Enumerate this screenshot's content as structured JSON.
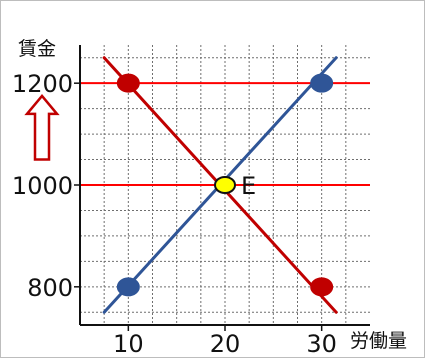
{
  "chart_data": {
    "type": "line",
    "ylabel": "賃金",
    "xlabel": "労働量",
    "x_ticks": [
      "10",
      "20",
      "30"
    ],
    "y_ticks": [
      "800",
      "1000",
      "1200"
    ],
    "xlim": [
      5,
      35
    ],
    "ylim": [
      725,
      1275
    ],
    "grid": true,
    "series": [
      {
        "x": [
          7.5,
          31.5
        ],
        "y": [
          1250,
          750
        ],
        "color": "#c00000"
      },
      {
        "x": [
          7.5,
          31.5
        ],
        "y": [
          750,
          1250
        ],
        "color": "#2f5597"
      }
    ],
    "points": [
      {
        "x": 10,
        "y": 1200,
        "color": "#c00000"
      },
      {
        "x": 30,
        "y": 1200,
        "color": "#2f5597"
      },
      {
        "x": 20,
        "y": 1000,
        "color": "#ffff00",
        "stroke": "#111111",
        "label": "E"
      },
      {
        "x": 10,
        "y": 800,
        "color": "#2f5597"
      },
      {
        "x": 30,
        "y": 800,
        "color": "#c00000"
      }
    ],
    "reference_lines": [
      {
        "y": 1200,
        "color": "#ff0000"
      },
      {
        "y": 1000,
        "color": "#ff0000"
      }
    ],
    "annotations": [
      {
        "type": "arrow-up",
        "y_range": [
          1050,
          1175
        ],
        "color": "#c00000"
      }
    ]
  }
}
